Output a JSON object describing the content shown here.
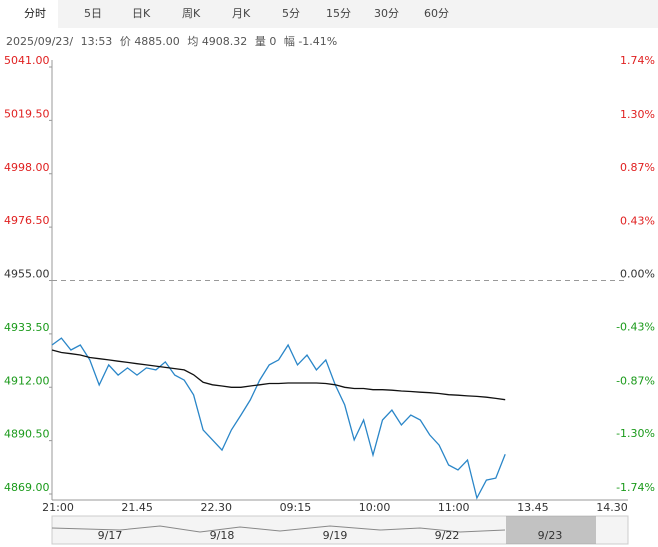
{
  "tabs": [
    "分时",
    "5日",
    "日K",
    "周K",
    "月K",
    "5分",
    "15分",
    "30分",
    "60分"
  ],
  "active_tab": 0,
  "info": {
    "date": "2025/09/23/",
    "time": "13:53",
    "price_label": "价",
    "price": "4885.00",
    "avg_label": "均",
    "avg": "4908.32",
    "vol_label": "量",
    "vol": "0",
    "amp_label": "幅",
    "amp": "-1.41%"
  },
  "chart_data": {
    "type": "line",
    "ylim": [
      4869,
      5041
    ],
    "yticks": [
      {
        "value": 5041,
        "label": "5041.00"
      },
      {
        "value": 5019.5,
        "label": "5019.50"
      },
      {
        "value": 4998,
        "label": "4998.00"
      },
      {
        "value": 4976.5,
        "label": "4976.50"
      },
      {
        "value": 4955,
        "label": "4955.00"
      },
      {
        "value": 4933.5,
        "label": "4933.50"
      },
      {
        "value": 4912,
        "label": "4912.00"
      },
      {
        "value": 4890.5,
        "label": "4890.50"
      },
      {
        "value": 4869,
        "label": "4869.00"
      }
    ],
    "y2lim": [
      -1.74,
      1.74
    ],
    "y2ticks": [
      {
        "value": 1.74,
        "label": "1.74%"
      },
      {
        "value": 1.3,
        "label": "1.30%"
      },
      {
        "value": 0.87,
        "label": "0.87%"
      },
      {
        "value": 0.43,
        "label": "0.43%"
      },
      {
        "value": 0,
        "label": "0.00%"
      },
      {
        "value": -0.43,
        "label": "-0.43%"
      },
      {
        "value": -0.87,
        "label": "-0.87%"
      },
      {
        "value": -1.3,
        "label": "-1.30%"
      },
      {
        "value": -1.74,
        "label": "-1.74%"
      }
    ],
    "reference_line": 4955,
    "up_color": "#e02020",
    "down_color": "#1a9a1a",
    "flat_color": "#333333",
    "x_tick_labels": [
      "21:00",
      "21.45",
      "22.30",
      "09:15",
      "10:00",
      "11:00",
      "13.45",
      "14.30"
    ],
    "series": [
      {
        "color": "#2a86c8",
        "values": [
          4929,
          4931.8,
          4927,
          4929,
          4923,
          4912.9,
          4921,
          4916.9,
          4919.8,
          4916.9,
          4919.8,
          4919,
          4922.2,
          4916.9,
          4914.9,
          4908.9,
          4894.8,
          4890.8,
          4886.7,
          4894.8,
          4900.8,
          4906.9,
          4914.9,
          4921,
          4923,
          4929,
          4921,
          4925,
          4919,
          4923,
          4912.9,
          4904.9,
          4890.8,
          4898.8,
          4884.7,
          4898.8,
          4902.8,
          4896.8,
          4900.8,
          4898.8,
          4892.8,
          4888.7,
          4880.7,
          4878.7,
          4882.7,
          4867.4,
          4874.6,
          4875.4,
          4885
        ]
      },
      {
        "color": "#111111",
        "values": [
          4927,
          4926,
          4925.5,
          4925,
          4924,
          4923.5,
          4923,
          4922.5,
          4922,
          4921.5,
          4921,
          4920.5,
          4920,
          4919.5,
          4919,
          4917,
          4914,
          4913,
          4912.5,
          4912,
          4912,
          4912.5,
          4913,
          4913.5,
          4913.5,
          4913.7,
          4913.7,
          4913.7,
          4913.7,
          4913.5,
          4913,
          4912,
          4911.5,
          4911.5,
          4911,
          4911,
          4910.8,
          4910.5,
          4910.3,
          4910,
          4909.8,
          4909.5,
          4909,
          4908.8,
          4908.5,
          4908.3,
          4908,
          4907.5,
          4907
        ]
      }
    ],
    "navigator_dates": [
      "9/17",
      "9/18",
      "9/19",
      "9/22",
      "9/23"
    ]
  }
}
